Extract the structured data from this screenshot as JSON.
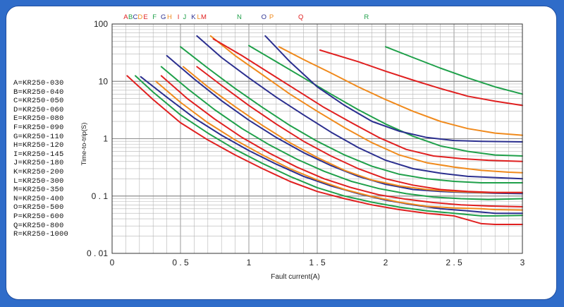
{
  "chart_data": {
    "type": "line",
    "title": "",
    "xlabel": "Fault current(A)",
    "ylabel": "Time-to-trip(S)",
    "xlim": [
      0,
      3
    ],
    "ylim": [
      0.01,
      100
    ],
    "yscale": "log",
    "grid": true,
    "x_ticks": [
      "0",
      "0.5",
      "1",
      "1.5",
      "2",
      "2.5",
      "3"
    ],
    "y_ticks": [
      "100",
      "10",
      "1",
      "0.1",
      "0.01"
    ],
    "x_tick_labels": [
      "0",
      "0 . 5",
      "1",
      "1 . 5",
      "2",
      "2 . 5",
      "3"
    ],
    "y_tick_labels": [
      "100",
      "10",
      "1",
      "0 . 1",
      "0 . 01"
    ],
    "legend_placement": "left",
    "legend": [
      "A=KR250-030",
      "B=KR250-040",
      "C=KR250-050",
      "D=KR250-060",
      "E=KR250-080",
      "F=KR250-090",
      "G=KR250-110",
      "H=KR250-120",
      "I=KR250-145",
      "J=KR250-180",
      "K=KR250-200",
      "L=KR250-300",
      "M=KR250-350",
      "N=KR250-400",
      "O=KR250-500",
      "P=KR250-600",
      "Q=KR250-800",
      "R=KR250-1000"
    ],
    "top_labels": [
      {
        "text": "A",
        "x": 0.1,
        "color": "#e02020"
      },
      {
        "text": "B",
        "x": 0.135,
        "color": "#1fa04a"
      },
      {
        "text": "C",
        "x": 0.17,
        "color": "#2b2f8f"
      },
      {
        "text": "D",
        "x": 0.205,
        "color": "#f08a1c"
      },
      {
        "text": "E",
        "x": 0.245,
        "color": "#e02020"
      },
      {
        "text": "F",
        "x": 0.31,
        "color": "#1fa04a"
      },
      {
        "text": "G",
        "x": 0.375,
        "color": "#2b2f8f"
      },
      {
        "text": "H",
        "x": 0.42,
        "color": "#f08a1c"
      },
      {
        "text": "I",
        "x": 0.485,
        "color": "#e02020"
      },
      {
        "text": "J",
        "x": 0.53,
        "color": "#1fa04a"
      },
      {
        "text": "K",
        "x": 0.595,
        "color": "#2b2f8f"
      },
      {
        "text": "L",
        "x": 0.635,
        "color": "#f08a1c"
      },
      {
        "text": "M",
        "x": 0.67,
        "color": "#e02020"
      },
      {
        "text": "N",
        "x": 0.93,
        "color": "#1fa04a"
      },
      {
        "text": "O",
        "x": 1.11,
        "color": "#2b2f8f"
      },
      {
        "text": "P",
        "x": 1.165,
        "color": "#f08a1c"
      },
      {
        "text": "Q",
        "x": 1.38,
        "color": "#e02020"
      },
      {
        "text": "R",
        "x": 1.86,
        "color": "#1fa04a"
      }
    ],
    "colors": {
      "red": "#e02020",
      "green": "#1fa04a",
      "blue": "#2b2f8f",
      "orange": "#f08a1c",
      "grid": "#b4b4b4",
      "axis": "#333333"
    },
    "series": [
      {
        "color": "#e02020",
        "points": [
          [
            0.11,
            12.5
          ],
          [
            0.3,
            4.8
          ],
          [
            0.5,
            1.9
          ],
          [
            0.7,
            0.95
          ],
          [
            0.9,
            0.52
          ],
          [
            1.1,
            0.3
          ],
          [
            1.3,
            0.18
          ],
          [
            1.5,
            0.12
          ],
          [
            1.7,
            0.09
          ],
          [
            1.9,
            0.07
          ],
          [
            2.1,
            0.058
          ],
          [
            2.3,
            0.05
          ],
          [
            2.5,
            0.045
          ],
          [
            2.7,
            0.033
          ],
          [
            2.8,
            0.032
          ],
          [
            3.0,
            0.032
          ]
        ]
      },
      {
        "color": "#1fa04a",
        "points": [
          [
            0.17,
            12.5
          ],
          [
            0.3,
            6.5
          ],
          [
            0.5,
            2.6
          ],
          [
            0.7,
            1.25
          ],
          [
            0.9,
            0.65
          ],
          [
            1.1,
            0.37
          ],
          [
            1.3,
            0.22
          ],
          [
            1.5,
            0.14
          ],
          [
            1.7,
            0.1
          ],
          [
            1.9,
            0.078
          ],
          [
            2.1,
            0.064
          ],
          [
            2.3,
            0.055
          ],
          [
            2.5,
            0.05
          ],
          [
            2.7,
            0.045
          ],
          [
            2.8,
            0.045
          ],
          [
            3.0,
            0.046
          ]
        ]
      },
      {
        "color": "#2b2f8f",
        "points": [
          [
            0.21,
            12.0
          ],
          [
            0.4,
            5.3
          ],
          [
            0.6,
            2.3
          ],
          [
            0.8,
            1.15
          ],
          [
            1.0,
            0.62
          ],
          [
            1.2,
            0.36
          ],
          [
            1.4,
            0.22
          ],
          [
            1.6,
            0.15
          ],
          [
            1.8,
            0.11
          ],
          [
            2.0,
            0.085
          ],
          [
            2.2,
            0.07
          ],
          [
            2.4,
            0.06
          ],
          [
            2.6,
            0.055
          ],
          [
            2.8,
            0.05
          ],
          [
            3.0,
            0.05
          ]
        ]
      },
      {
        "color": "#f08a1c",
        "points": [
          [
            0.32,
            10.0
          ],
          [
            0.5,
            4.3
          ],
          [
            0.7,
            1.9
          ],
          [
            0.9,
            0.95
          ],
          [
            1.1,
            0.52
          ],
          [
            1.3,
            0.3
          ],
          [
            1.5,
            0.19
          ],
          [
            1.7,
            0.13
          ],
          [
            1.9,
            0.098
          ],
          [
            2.1,
            0.078
          ],
          [
            2.3,
            0.066
          ],
          [
            2.5,
            0.062
          ],
          [
            2.7,
            0.06
          ],
          [
            2.8,
            0.058
          ],
          [
            3.0,
            0.057
          ]
        ]
      },
      {
        "color": "#e02020",
        "points": [
          [
            0.36,
            12.5
          ],
          [
            0.55,
            5.0
          ],
          [
            0.75,
            2.2
          ],
          [
            0.95,
            1.05
          ],
          [
            1.15,
            0.56
          ],
          [
            1.35,
            0.32
          ],
          [
            1.55,
            0.2
          ],
          [
            1.75,
            0.14
          ],
          [
            1.95,
            0.105
          ],
          [
            2.15,
            0.088
          ],
          [
            2.35,
            0.077
          ],
          [
            2.55,
            0.07
          ],
          [
            2.75,
            0.067
          ],
          [
            3.0,
            0.065
          ]
        ]
      },
      {
        "color": "#1fa04a",
        "points": [
          [
            0.36,
            18.0
          ],
          [
            0.55,
            7.5
          ],
          [
            0.75,
            3.2
          ],
          [
            0.95,
            1.5
          ],
          [
            1.15,
            0.78
          ],
          [
            1.35,
            0.44
          ],
          [
            1.55,
            0.27
          ],
          [
            1.75,
            0.18
          ],
          [
            1.95,
            0.135
          ],
          [
            2.15,
            0.11
          ],
          [
            2.35,
            0.096
          ],
          [
            2.55,
            0.09
          ],
          [
            2.75,
            0.087
          ],
          [
            3.0,
            0.09
          ]
        ]
      },
      {
        "color": "#2b2f8f",
        "points": [
          [
            0.4,
            28.0
          ],
          [
            0.6,
            11.0
          ],
          [
            0.8,
            4.6
          ],
          [
            1.0,
            2.1
          ],
          [
            1.2,
            1.05
          ],
          [
            1.4,
            0.57
          ],
          [
            1.6,
            0.34
          ],
          [
            1.8,
            0.22
          ],
          [
            2.0,
            0.16
          ],
          [
            2.2,
            0.13
          ],
          [
            2.4,
            0.12
          ],
          [
            2.6,
            0.115
          ],
          [
            2.8,
            0.112
          ],
          [
            3.0,
            0.11
          ]
        ]
      },
      {
        "color": "#f08a1c",
        "points": [
          [
            0.52,
            18.0
          ],
          [
            0.7,
            8.0
          ],
          [
            0.9,
            3.6
          ],
          [
            1.1,
            1.7
          ],
          [
            1.3,
            0.85
          ],
          [
            1.5,
            0.47
          ],
          [
            1.7,
            0.28
          ],
          [
            1.9,
            0.19
          ],
          [
            2.1,
            0.15
          ],
          [
            2.3,
            0.13
          ],
          [
            2.5,
            0.12
          ],
          [
            2.7,
            0.115
          ],
          [
            3.0,
            0.115
          ]
        ]
      },
      {
        "color": "#e02020",
        "points": [
          [
            0.62,
            18.0
          ],
          [
            0.8,
            8.5
          ],
          [
            1.0,
            3.8
          ],
          [
            1.2,
            1.8
          ],
          [
            1.4,
            0.9
          ],
          [
            1.6,
            0.5
          ],
          [
            1.8,
            0.3
          ],
          [
            2.0,
            0.2
          ],
          [
            2.2,
            0.155
          ],
          [
            2.4,
            0.13
          ],
          [
            2.6,
            0.12
          ],
          [
            2.8,
            0.115
          ],
          [
            3.0,
            0.115
          ]
        ]
      },
      {
        "color": "#1fa04a",
        "points": [
          [
            0.5,
            40.0
          ],
          [
            0.7,
            17.0
          ],
          [
            0.9,
            7.5
          ],
          [
            1.1,
            3.5
          ],
          [
            1.3,
            1.7
          ],
          [
            1.5,
            0.9
          ],
          [
            1.7,
            0.52
          ],
          [
            1.9,
            0.33
          ],
          [
            2.1,
            0.24
          ],
          [
            2.3,
            0.2
          ],
          [
            2.5,
            0.18
          ],
          [
            2.7,
            0.17
          ],
          [
            3.0,
            0.17
          ]
        ]
      },
      {
        "color": "#2b2f8f",
        "points": [
          [
            0.62,
            62.0
          ],
          [
            0.8,
            26.0
          ],
          [
            1.0,
            11.5
          ],
          [
            1.2,
            5.3
          ],
          [
            1.4,
            2.6
          ],
          [
            1.6,
            1.3
          ],
          [
            1.8,
            0.7
          ],
          [
            2.0,
            0.42
          ],
          [
            2.2,
            0.3
          ],
          [
            2.4,
            0.25
          ],
          [
            2.6,
            0.22
          ],
          [
            2.8,
            0.21
          ],
          [
            3.0,
            0.2
          ]
        ]
      },
      {
        "color": "#f08a1c",
        "points": [
          [
            0.72,
            62.0
          ],
          [
            0.9,
            28.0
          ],
          [
            1.1,
            13.0
          ],
          [
            1.3,
            6.0
          ],
          [
            1.5,
            3.0
          ],
          [
            1.7,
            1.55
          ],
          [
            1.9,
            0.85
          ],
          [
            2.1,
            0.52
          ],
          [
            2.3,
            0.38
          ],
          [
            2.5,
            0.32
          ],
          [
            2.7,
            0.28
          ],
          [
            2.9,
            0.26
          ],
          [
            3.0,
            0.255
          ]
        ]
      },
      {
        "color": "#e02020",
        "points": [
          [
            0.74,
            55.0
          ],
          [
            0.95,
            28.0
          ],
          [
            1.15,
            14.0
          ],
          [
            1.35,
            7.0
          ],
          [
            1.55,
            3.5
          ],
          [
            1.75,
            1.9
          ],
          [
            1.95,
            1.05
          ],
          [
            2.15,
            0.65
          ],
          [
            2.35,
            0.5
          ],
          [
            2.55,
            0.45
          ],
          [
            2.75,
            0.42
          ],
          [
            3.0,
            0.4
          ]
        ]
      },
      {
        "color": "#1fa04a",
        "points": [
          [
            1.0,
            42.0
          ],
          [
            1.2,
            22.0
          ],
          [
            1.4,
            11.5
          ],
          [
            1.6,
            6.0
          ],
          [
            1.8,
            3.2
          ],
          [
            2.0,
            1.8
          ],
          [
            2.2,
            1.1
          ],
          [
            2.4,
            0.75
          ],
          [
            2.6,
            0.6
          ],
          [
            2.8,
            0.52
          ],
          [
            3.0,
            0.5
          ]
        ]
      },
      {
        "color": "#2b2f8f",
        "points": [
          [
            1.12,
            62.0
          ],
          [
            1.3,
            22.0
          ],
          [
            1.5,
            8.0
          ],
          [
            1.7,
            3.8
          ],
          [
            1.9,
            2.0
          ],
          [
            2.1,
            1.35
          ],
          [
            2.3,
            1.05
          ],
          [
            2.5,
            0.93
          ],
          [
            2.7,
            0.9
          ],
          [
            3.0,
            0.88
          ]
        ]
      },
      {
        "color": "#f08a1c",
        "points": [
          [
            1.22,
            40.0
          ],
          [
            1.4,
            24.0
          ],
          [
            1.6,
            14.0
          ],
          [
            1.8,
            8.0
          ],
          [
            2.0,
            4.8
          ],
          [
            2.2,
            3.0
          ],
          [
            2.4,
            2.0
          ],
          [
            2.6,
            1.5
          ],
          [
            2.8,
            1.25
          ],
          [
            3.0,
            1.15
          ]
        ]
      },
      {
        "color": "#e02020",
        "points": [
          [
            1.52,
            35.0
          ],
          [
            1.8,
            22.0
          ],
          [
            2.0,
            15.0
          ],
          [
            2.2,
            10.5
          ],
          [
            2.4,
            7.5
          ],
          [
            2.6,
            5.5
          ],
          [
            2.8,
            4.5
          ],
          [
            3.0,
            3.8
          ]
        ]
      },
      {
        "color": "#1fa04a",
        "points": [
          [
            2.0,
            40.0
          ],
          [
            2.2,
            26.0
          ],
          [
            2.4,
            17.0
          ],
          [
            2.6,
            11.5
          ],
          [
            2.8,
            8.0
          ],
          [
            3.0,
            6.0
          ]
        ]
      }
    ]
  }
}
